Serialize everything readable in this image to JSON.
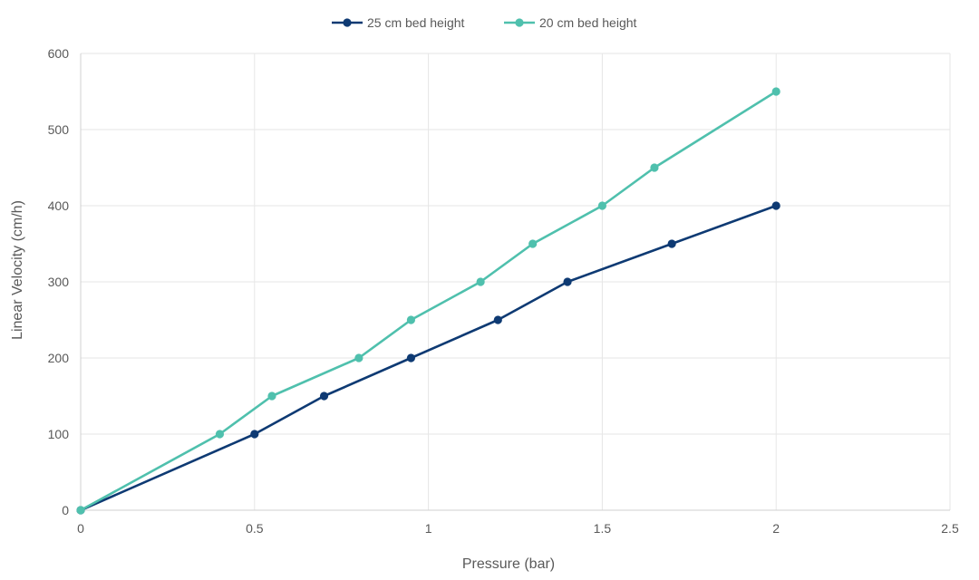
{
  "chart_data": {
    "type": "line",
    "xlabel": "Pressure (bar)",
    "ylabel": "Linear Velocity (cm/h)",
    "xlim": [
      0,
      2.5
    ],
    "ylim": [
      0,
      600
    ],
    "xticks": [
      0,
      0.5,
      1,
      1.5,
      2,
      2.5
    ],
    "xtick_labels": [
      "0",
      "0.5",
      "1",
      "1.5",
      "2",
      "2.5"
    ],
    "yticks": [
      0,
      100,
      200,
      300,
      400,
      500,
      600
    ],
    "ytick_labels": [
      "0",
      "100",
      "200",
      "300",
      "400",
      "500",
      "600"
    ],
    "grid": true,
    "legend_position": "top-center",
    "series": [
      {
        "name": "25 cm bed height",
        "color": "#0e3a73",
        "points": [
          {
            "x": 0,
            "y": 0
          },
          {
            "x": 0.5,
            "y": 100
          },
          {
            "x": 0.7,
            "y": 150
          },
          {
            "x": 0.95,
            "y": 200
          },
          {
            "x": 1.2,
            "y": 250
          },
          {
            "x": 1.4,
            "y": 300
          },
          {
            "x": 1.7,
            "y": 350
          },
          {
            "x": 2.0,
            "y": 400
          }
        ]
      },
      {
        "name": "20 cm bed height",
        "color": "#4fc0ad",
        "points": [
          {
            "x": 0,
            "y": 0
          },
          {
            "x": 0.4,
            "y": 100
          },
          {
            "x": 0.55,
            "y": 150
          },
          {
            "x": 0.8,
            "y": 200
          },
          {
            "x": 0.95,
            "y": 250
          },
          {
            "x": 1.15,
            "y": 300
          },
          {
            "x": 1.3,
            "y": 350
          },
          {
            "x": 1.5,
            "y": 400
          },
          {
            "x": 1.65,
            "y": 450
          },
          {
            "x": 2.0,
            "y": 550
          }
        ]
      }
    ]
  }
}
